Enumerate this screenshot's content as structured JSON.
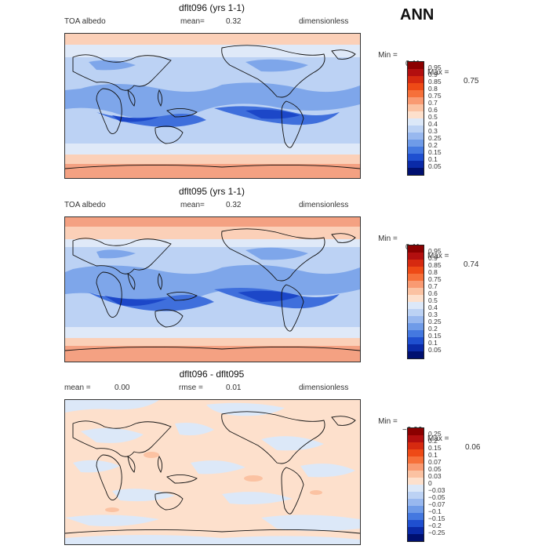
{
  "season": "ANN",
  "panels": [
    {
      "title": "dflt096 (yrs 1-1)",
      "left_label": "TOA albedo",
      "mean_label": "mean=",
      "mean_value": "0.32",
      "units": "dimensionless",
      "min_label": "Min =",
      "min_value": "0.11",
      "max_label": "Max =",
      "max_value": "0.75",
      "colorbar": {
        "labels": [
          "0.95",
          "0.9",
          "0.85",
          "0.8",
          "0.75",
          "0.7",
          "0.6",
          "0.5",
          "0.4",
          "0.3",
          "0.25",
          "0.2",
          "0.15",
          "0.1",
          "0.05"
        ],
        "colors": [
          "#8b0000",
          "#b30f0f",
          "#d62a10",
          "#ee4a16",
          "#f6703a",
          "#f99a72",
          "#fbc2a2",
          "#fde0cc",
          "#dce8f8",
          "#bcd2f4",
          "#98b8ef",
          "#6f9be8",
          "#4478e0",
          "#1f4fd0",
          "#0a2aa8",
          "#001070"
        ]
      }
    },
    {
      "title": "dflt095 (yrs 1-1)",
      "left_label": "TOA albedo",
      "mean_label": "mean=",
      "mean_value": "0.32",
      "units": "dimensionless",
      "min_label": "Min =",
      "min_value": "0.11",
      "max_label": "Max =",
      "max_value": "0.74",
      "colorbar": {
        "labels": [
          "0.95",
          "0.9",
          "0.85",
          "0.8",
          "0.75",
          "0.7",
          "0.6",
          "0.5",
          "0.4",
          "0.3",
          "0.25",
          "0.2",
          "0.15",
          "0.1",
          "0.05"
        ],
        "colors": [
          "#8b0000",
          "#b30f0f",
          "#d62a10",
          "#ee4a16",
          "#f6703a",
          "#f99a72",
          "#fbc2a2",
          "#fde0cc",
          "#dce8f8",
          "#bcd2f4",
          "#98b8ef",
          "#6f9be8",
          "#4478e0",
          "#1f4fd0",
          "#0a2aa8",
          "#001070"
        ]
      }
    },
    {
      "title": "dflt096 - dflt095",
      "mean_label": "mean =",
      "mean_value": "0.00",
      "rmse_label": "rmse =",
      "rmse_value": "0.01",
      "units": "dimensionless",
      "min_label": "Min =",
      "min_value": "−0.06",
      "max_label": "Max =",
      "max_value": "0.06",
      "colorbar": {
        "labels": [
          "0.25",
          "0.2",
          "0.15",
          "0.1",
          "0.07",
          "0.05",
          "0.03",
          "0",
          "−0.03",
          "−0.05",
          "−0.07",
          "−0.1",
          "−0.15",
          "−0.2",
          "−0.25"
        ],
        "colors": [
          "#8b0000",
          "#b30f0f",
          "#d62a10",
          "#ee4a16",
          "#f6703a",
          "#f99a72",
          "#fbc2a2",
          "#fde0cc",
          "#dce8f8",
          "#bcd2f4",
          "#98b8ef",
          "#6f9be8",
          "#4478e0",
          "#1f4fd0",
          "#0a2aa8",
          "#001070"
        ]
      }
    }
  ],
  "colors": {
    "land_ice_high": "#f4a182",
    "polar_ocean": "#fbd0b8",
    "midlat": "#dfe9f8",
    "light_blue": "#b8cff3",
    "mid_blue": "#7ea6ea",
    "deep_blue": "#3f6fdc",
    "darkest_blue": "#1c47c8",
    "diff_pos": "#fde0cc",
    "diff_neg": "#dce8f8"
  }
}
